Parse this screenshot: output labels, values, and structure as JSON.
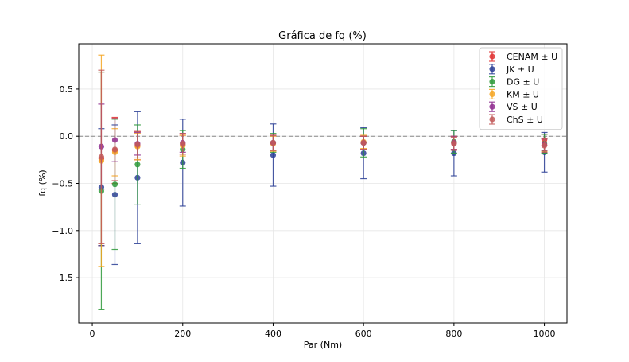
{
  "chart_data": {
    "type": "scatter",
    "title": "Gráfica de fq (%)",
    "xlabel": "Par (Nm)",
    "ylabel": "fq (%)",
    "xlim": [
      -30,
      1050
    ],
    "ylim": [
      -1.98,
      0.98
    ],
    "xticks": [
      0,
      200,
      400,
      600,
      800,
      1000
    ],
    "yticks": [
      -1.5,
      -1.0,
      -0.5,
      0.0,
      0.5
    ],
    "ytick_labels": [
      "−1.5",
      "−1.0",
      "−0.5",
      "0.0",
      "0.5"
    ],
    "grid": true,
    "reference_line": 0,
    "legend_position": "top-right",
    "series": [
      {
        "name": "CENAM ± U",
        "color": "#e03030",
        "points": [
          {
            "x": 20,
            "y": -0.24,
            "u": 0.92
          },
          {
            "x": 50,
            "y": -0.15,
            "u": 0.35
          },
          {
            "x": 100,
            "y": -0.1,
            "u": 0.15
          },
          {
            "x": 200,
            "y": -0.09,
            "u": 0.1
          },
          {
            "x": 400,
            "y": -0.07,
            "u": 0.08
          },
          {
            "x": 600,
            "y": -0.07,
            "u": 0.07
          },
          {
            "x": 800,
            "y": -0.07,
            "u": 0.07
          },
          {
            "x": 1000,
            "y": -0.04,
            "u": 0.06
          }
        ]
      },
      {
        "name": "JK ± U",
        "color": "#2b3f96",
        "points": [
          {
            "x": 20,
            "y": -0.54,
            "u": 0.62
          },
          {
            "x": 50,
            "y": -0.62,
            "u": 0.74
          },
          {
            "x": 100,
            "y": -0.44,
            "u": 0.7
          },
          {
            "x": 200,
            "y": -0.28,
            "u": 0.46
          },
          {
            "x": 400,
            "y": -0.2,
            "u": 0.33
          },
          {
            "x": 600,
            "y": -0.18,
            "u": 0.27
          },
          {
            "x": 800,
            "y": -0.18,
            "u": 0.24
          },
          {
            "x": 1000,
            "y": -0.17,
            "u": 0.21
          }
        ]
      },
      {
        "name": "DG ± U",
        "color": "#2e9a3a",
        "points": [
          {
            "x": 20,
            "y": -0.58,
            "u": 1.26
          },
          {
            "x": 50,
            "y": -0.51,
            "u": 0.69
          },
          {
            "x": 100,
            "y": -0.3,
            "u": 0.42
          },
          {
            "x": 200,
            "y": -0.14,
            "u": 0.2
          },
          {
            "x": 400,
            "y": -0.07,
            "u": 0.1
          },
          {
            "x": 600,
            "y": -0.07,
            "u": 0.15
          },
          {
            "x": 800,
            "y": -0.06,
            "u": 0.12
          },
          {
            "x": 1000,
            "y": -0.08,
            "u": 0.1
          }
        ]
      },
      {
        "name": "KM ± U",
        "color": "#f5a623",
        "points": [
          {
            "x": 20,
            "y": -0.26,
            "u": 1.12
          },
          {
            "x": 50,
            "y": -0.17,
            "u": 0.25
          },
          {
            "x": 100,
            "y": -0.11,
            "u": 0.14
          },
          {
            "x": 200,
            "y": -0.1,
            "u": 0.11
          },
          {
            "x": 400,
            "y": -0.08,
            "u": 0.08
          },
          {
            "x": 600,
            "y": -0.06,
            "u": 0.07
          },
          {
            "x": 800,
            "y": -0.07,
            "u": 0.07
          },
          {
            "x": 1000,
            "y": -0.09,
            "u": 0.07
          }
        ]
      },
      {
        "name": "VS ± U",
        "color": "#8e2c8e",
        "points": [
          {
            "x": 20,
            "y": -0.11,
            "u": 0.45
          },
          {
            "x": 50,
            "y": -0.04,
            "u": 0.23
          },
          {
            "x": 100,
            "y": -0.08,
            "u": 0.12
          },
          {
            "x": 200,
            "y": -0.07,
            "u": 0.1
          },
          {
            "x": 400,
            "y": -0.07,
            "u": 0.08
          },
          {
            "x": 600,
            "y": -0.07,
            "u": 0.07
          },
          {
            "x": 800,
            "y": -0.07,
            "u": 0.07
          },
          {
            "x": 1000,
            "y": -0.09,
            "u": 0.06
          }
        ]
      },
      {
        "name": "ChS ± U",
        "color": "#c25b5b",
        "points": [
          {
            "x": 20,
            "y": -0.22,
            "u": 0.92
          },
          {
            "x": 50,
            "y": -0.14,
            "u": 0.33
          },
          {
            "x": 100,
            "y": -0.09,
            "u": 0.14
          },
          {
            "x": 200,
            "y": -0.08,
            "u": 0.11
          },
          {
            "x": 400,
            "y": -0.07,
            "u": 0.08
          },
          {
            "x": 600,
            "y": -0.07,
            "u": 0.07
          },
          {
            "x": 800,
            "y": -0.08,
            "u": 0.07
          },
          {
            "x": 1000,
            "y": -0.1,
            "u": 0.07
          }
        ]
      }
    ]
  }
}
